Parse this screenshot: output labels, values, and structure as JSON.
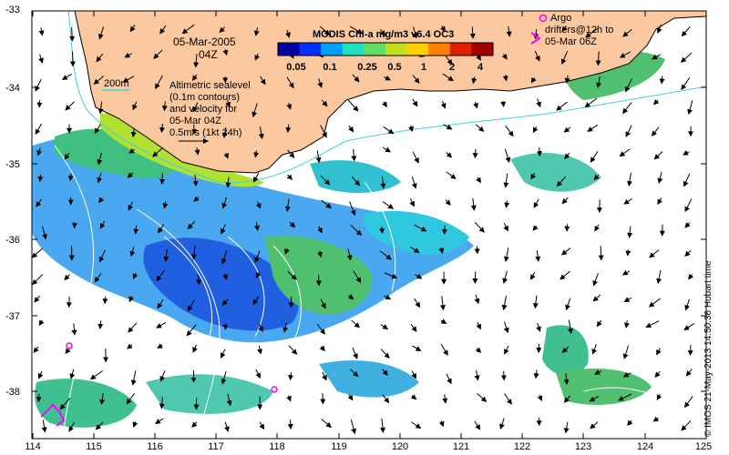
{
  "map": {
    "date": "05-Mar-2005",
    "time": "04Z",
    "colorbar_title": "MODIS Chl-a mg/m3 v6.4 OC3",
    "colorbar_ticks": [
      "0.05",
      "0.1",
      "0.25",
      "0.5",
      "1",
      "2",
      "4"
    ],
    "colorbar_colors": [
      "#0000a0",
      "#0030ff",
      "#00a0ff",
      "#20e0c0",
      "#60e060",
      "#c0e020",
      "#ffd000",
      "#ff8000",
      "#e02000",
      "#a00000"
    ],
    "contour_label": "200m",
    "altimetry_note": [
      "Altimetric sealevel",
      "(0.1m contours)",
      "and velocity for",
      "05-Mar 04Z",
      "0.5m/s (1kt 24h)"
    ],
    "argo_note": [
      "Argo",
      "drifters@12h to",
      "05-Mar 06Z"
    ],
    "x_ticks": [
      "114",
      "115",
      "116",
      "117",
      "118",
      "119",
      "120",
      "121",
      "122",
      "123",
      "124",
      "125"
    ],
    "y_ticks": [
      "-33",
      "-34",
      "-35",
      "-36",
      "-37",
      "-38"
    ],
    "credit": "© IMOS 21-May-2013 14:50:36 Hobart time",
    "colors": {
      "land": "#fcc8a0",
      "coast": "#000000",
      "isobath": "#40d0e0",
      "drifter": "#ff00ff",
      "contour": "#ffffff"
    }
  }
}
